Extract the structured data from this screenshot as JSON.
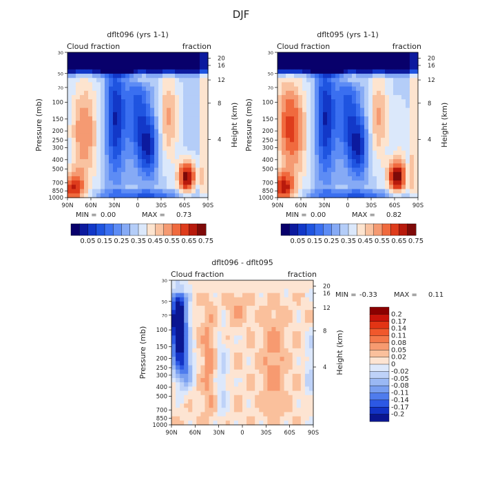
{
  "figure_title": "DJF",
  "chart_data": [
    {
      "type": "heatmap",
      "title": "dflt096 (yrs 1-1)",
      "left_label": "Cloud fraction",
      "right_label": "fraction",
      "xlabel": "",
      "ylabel": "Pressure (mb)",
      "y2label": "Height (km)",
      "x_ticks": [
        "90N",
        "60N",
        "30N",
        "0",
        "30S",
        "60S",
        "90S"
      ],
      "y_ticks": [
        "1000",
        "850",
        "700",
        "500",
        "400",
        "300",
        "250",
        "200",
        "150",
        "100",
        "70",
        "50",
        "30"
      ],
      "y2_ticks": [
        "4",
        "8",
        "12",
        "16",
        "20"
      ],
      "stats": {
        "min_label": "MIN =",
        "min": "0.00",
        "max_label": "MAX =",
        "max": "0.73"
      },
      "colorbar": {
        "orientation": "horizontal",
        "labels": [
          "0.05",
          "0.15",
          "0.25",
          "0.35",
          "0.45",
          "0.55",
          "0.65",
          "0.75"
        ],
        "colors": [
          "#08006b",
          "#0c1a9e",
          "#1238c8",
          "#1f54e0",
          "#3a6ff0",
          "#5d8cf5",
          "#86aaf5",
          "#b4cdf8",
          "#dbe8fb",
          "#fde4cf",
          "#f9c2a0",
          "#f59a72",
          "#f06a3e",
          "#de3c1c",
          "#b81a0c",
          "#7e0a08"
        ]
      }
    },
    {
      "type": "heatmap",
      "title": "dflt095 (yrs 1-1)",
      "left_label": "Cloud fraction",
      "right_label": "fraction",
      "xlabel": "",
      "ylabel": "Pressure (mb)",
      "y2label": "Height (km)",
      "x_ticks": [
        "90N",
        "60N",
        "30N",
        "0",
        "30S",
        "60S",
        "90S"
      ],
      "y_ticks": [
        "1000",
        "850",
        "700",
        "500",
        "400",
        "300",
        "250",
        "200",
        "150",
        "100",
        "70",
        "50",
        "30"
      ],
      "y2_ticks": [
        "4",
        "8",
        "12",
        "16",
        "20"
      ],
      "stats": {
        "min_label": "MIN =",
        "min": "0.00",
        "max_label": "MAX =",
        "max": "0.82"
      },
      "colorbar": {
        "orientation": "horizontal",
        "labels": [
          "0.05",
          "0.15",
          "0.25",
          "0.35",
          "0.45",
          "0.55",
          "0.65",
          "0.75"
        ],
        "colors": [
          "#08006b",
          "#0c1a9e",
          "#1238c8",
          "#1f54e0",
          "#3a6ff0",
          "#5d8cf5",
          "#86aaf5",
          "#b4cdf8",
          "#dbe8fb",
          "#fde4cf",
          "#f9c2a0",
          "#f59a72",
          "#f06a3e",
          "#de3c1c",
          "#b81a0c",
          "#7e0a08"
        ]
      }
    },
    {
      "type": "heatmap",
      "title": "dflt096 - dflt095",
      "left_label": "Cloud fraction",
      "right_label": "fraction",
      "xlabel": "",
      "ylabel": "Pressure (mb)",
      "y2label": "Height (km)",
      "x_ticks": [
        "90N",
        "60N",
        "30N",
        "0",
        "30S",
        "60S",
        "90S"
      ],
      "y_ticks": [
        "1000",
        "850",
        "700",
        "500",
        "400",
        "300",
        "250",
        "200",
        "150",
        "100",
        "70",
        "50",
        "30"
      ],
      "y2_ticks": [
        "4",
        "8",
        "12",
        "16",
        "20"
      ],
      "stats": {
        "min_label": "MIN =",
        "min": "-0.33",
        "max_label": "MAX =",
        "max": "0.11"
      },
      "colorbar": {
        "orientation": "vertical",
        "labels": [
          "0.2",
          "0.17",
          "0.14",
          "0.11",
          "0.08",
          "0.05",
          "0.02",
          "0",
          "-0.02",
          "-0.05",
          "-0.08",
          "-0.11",
          "-0.14",
          "-0.17",
          "-0.2"
        ],
        "colors": [
          "#8b0000",
          "#c8140a",
          "#e23414",
          "#f0582c",
          "#f4784a",
          "#f79a70",
          "#fac09c",
          "#fde4d2",
          "#dde8fb",
          "#bed2f8",
          "#9ab8f4",
          "#789ef0",
          "#4f7ced",
          "#2c58e4",
          "#1232c4",
          "#0a1690"
        ]
      }
    }
  ]
}
